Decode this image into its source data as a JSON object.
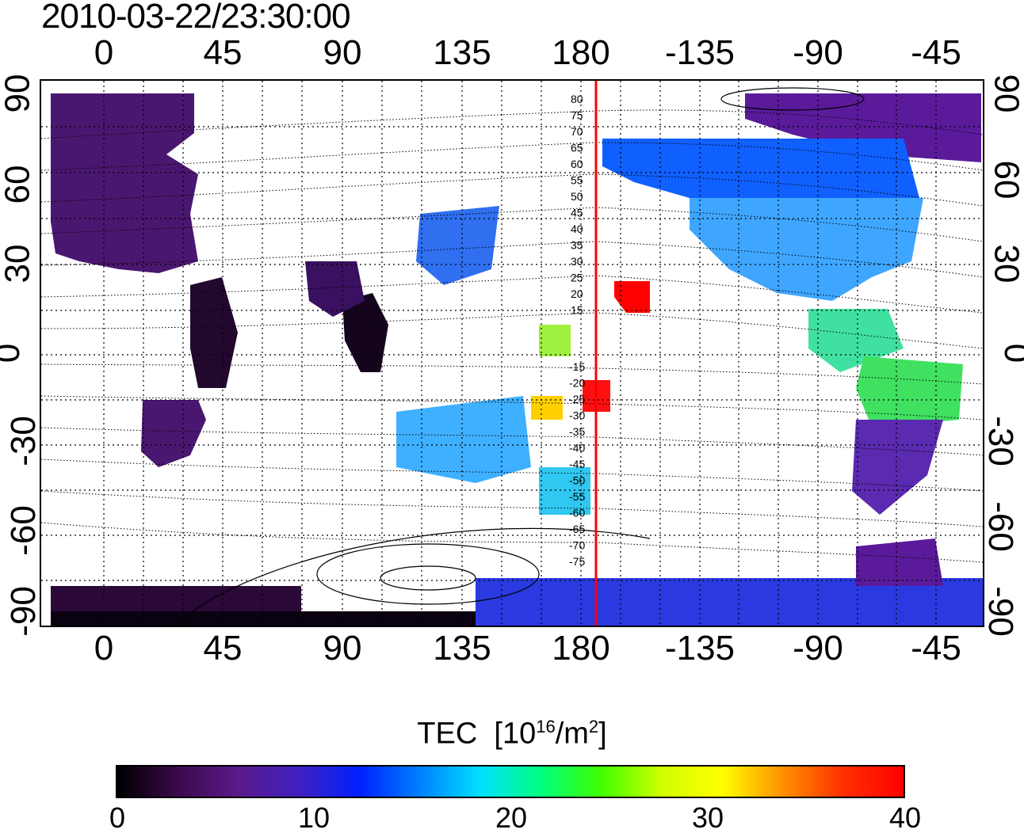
{
  "header": {
    "timestamp": "2010-03-22/23:30:00"
  },
  "map": {
    "x_ticks": [
      "0",
      "45",
      "90",
      "135",
      "180",
      "-135",
      "-90",
      "-45"
    ],
    "y_ticks": [
      "90",
      "60",
      "30",
      "0",
      "-30",
      "-60",
      "-90"
    ],
    "contour_labels_upper": [
      "80",
      "75",
      "70",
      "65",
      "60",
      "55",
      "50",
      "45",
      "40",
      "35",
      "30",
      "25",
      "20",
      "15"
    ],
    "contour_labels_lower": [
      "-15",
      "-20",
      "-25",
      "-30",
      "-35",
      "-40",
      "-45",
      "-50",
      "-55",
      "-60",
      "-65",
      "-70",
      "-75"
    ]
  },
  "colorbar": {
    "title": "TEC",
    "unit_prefix": "[10",
    "unit_exp": "16",
    "unit_mid": "/m",
    "unit_exp2": "2",
    "unit_suffix": "]",
    "ticks": [
      "0",
      "10",
      "20",
      "30",
      "40"
    ],
    "colors": [
      "#000000",
      "#3a0a4a",
      "#5a1a8a",
      "#4020c0",
      "#0020ff",
      "#0080ff",
      "#00e0ff",
      "#00ff80",
      "#40ff00",
      "#d0ff00",
      "#ffff00",
      "#ff9000",
      "#ff3000",
      "#ff0000"
    ]
  }
}
